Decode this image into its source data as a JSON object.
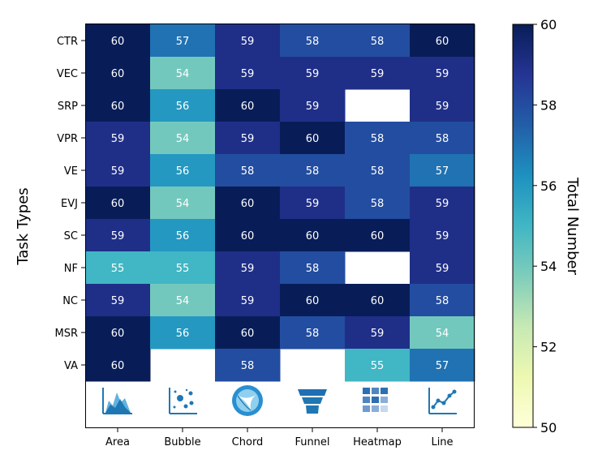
{
  "chart_data": {
    "type": "heatmap",
    "title": "",
    "ylabel": "Task Types",
    "xlabel": "",
    "x_categories": [
      "Area",
      "Bubble",
      "Chord",
      "Funnel",
      "Heatmap",
      "Line"
    ],
    "y_categories": [
      "CTR",
      "VEC",
      "SRP",
      "VPR",
      "VE",
      "EVJ",
      "SC",
      "NF",
      "NC",
      "MSR",
      "VA"
    ],
    "values": [
      [
        60,
        57,
        59,
        58,
        58,
        60
      ],
      [
        60,
        54,
        59,
        59,
        59,
        59
      ],
      [
        60,
        56,
        60,
        59,
        null,
        59
      ],
      [
        59,
        54,
        59,
        60,
        58,
        58
      ],
      [
        59,
        56,
        58,
        58,
        58,
        57
      ],
      [
        60,
        54,
        60,
        59,
        58,
        59
      ],
      [
        59,
        56,
        60,
        60,
        60,
        59
      ],
      [
        55,
        55,
        59,
        58,
        null,
        59
      ],
      [
        59,
        54,
        59,
        60,
        60,
        58
      ],
      [
        60,
        56,
        60,
        58,
        59,
        54
      ],
      [
        60,
        null,
        58,
        null,
        55,
        57
      ]
    ],
    "colormap": "YlGnBu",
    "colorbar": {
      "label": "Total Number",
      "range": [
        50,
        60
      ],
      "ticks": [
        50,
        52,
        54,
        56,
        58,
        60
      ]
    },
    "x_icons": [
      "area-chart-icon",
      "bubble-chart-icon",
      "chord-chart-icon",
      "funnel-chart-icon",
      "heatmap-chart-icon",
      "line-chart-icon"
    ],
    "icon_color": "#1f77b4"
  }
}
